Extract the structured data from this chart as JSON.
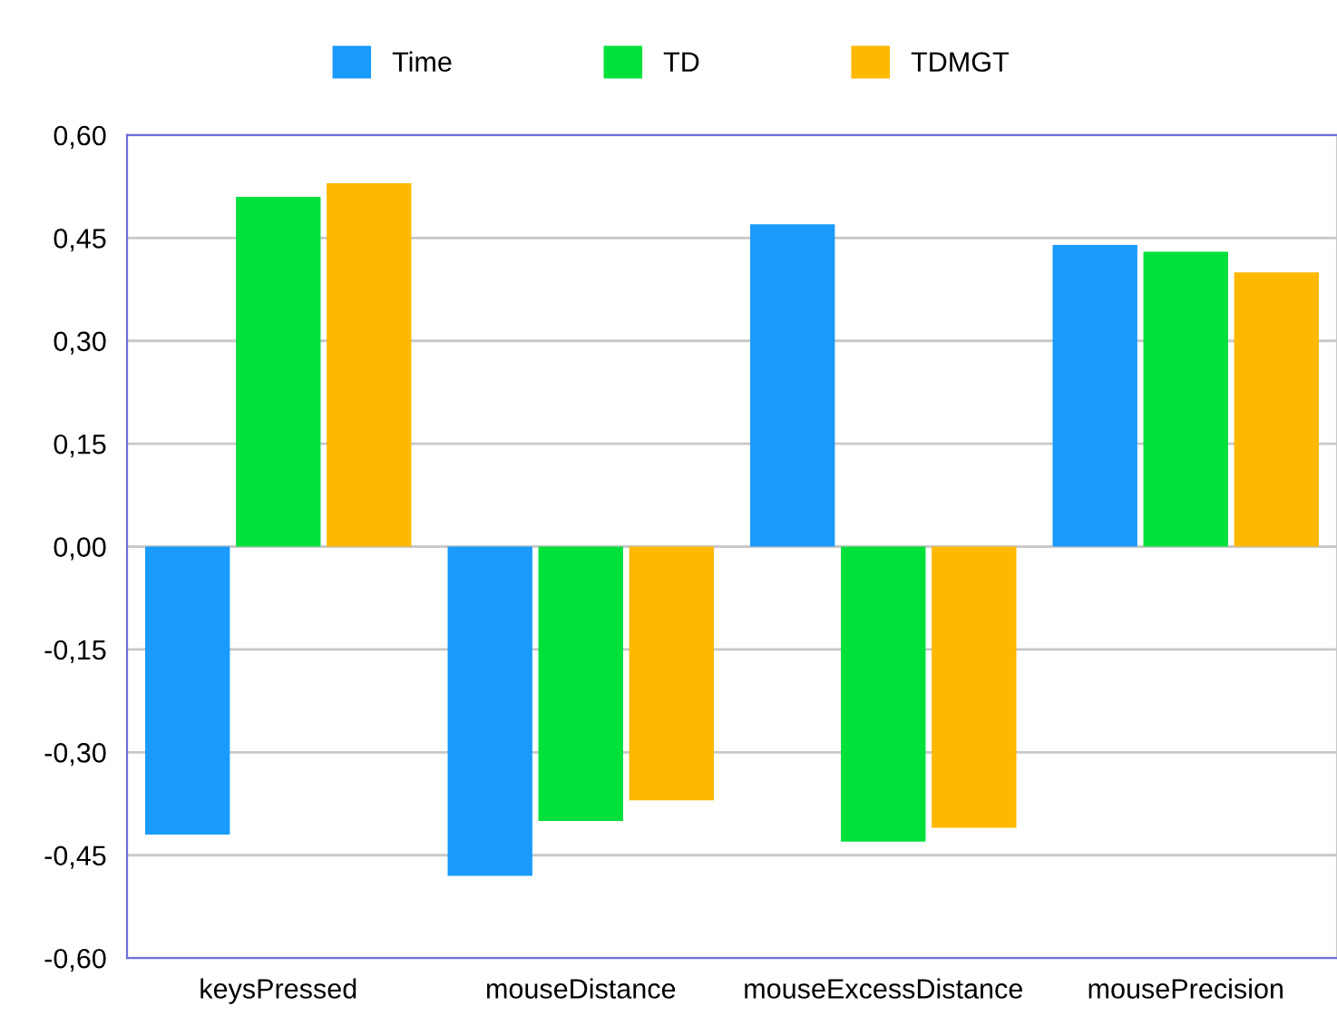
{
  "chart_data": {
    "type": "bar",
    "categories": [
      "keysPressed",
      "mouseDistance",
      "mouseExcessDistance",
      "mousePrecision"
    ],
    "series": [
      {
        "name": "Time",
        "color": "#1a9bfc",
        "values": [
          -0.42,
          -0.48,
          0.47,
          0.44
        ]
      },
      {
        "name": "TD",
        "color": "#00e03c",
        "values": [
          0.51,
          -0.4,
          -0.43,
          0.43
        ]
      },
      {
        "name": "TDMGT",
        "color": "#ffb800",
        "values": [
          0.53,
          -0.37,
          -0.41,
          0.4
        ]
      }
    ],
    "ylim": [
      -0.6,
      0.6
    ],
    "yticks": [
      {
        "value": -0.6,
        "label": "-0,60"
      },
      {
        "value": -0.45,
        "label": "-0,45"
      },
      {
        "value": -0.3,
        "label": "-0,30"
      },
      {
        "value": -0.15,
        "label": "-0,15"
      },
      {
        "value": 0,
        "label": "0,00"
      },
      {
        "value": 0.15,
        "label": "0,15"
      },
      {
        "value": 0.3,
        "label": "0,30"
      },
      {
        "value": 0.45,
        "label": "0,45"
      },
      {
        "value": 0.6,
        "label": "0,60"
      }
    ],
    "grid": "y",
    "legend": "top"
  }
}
